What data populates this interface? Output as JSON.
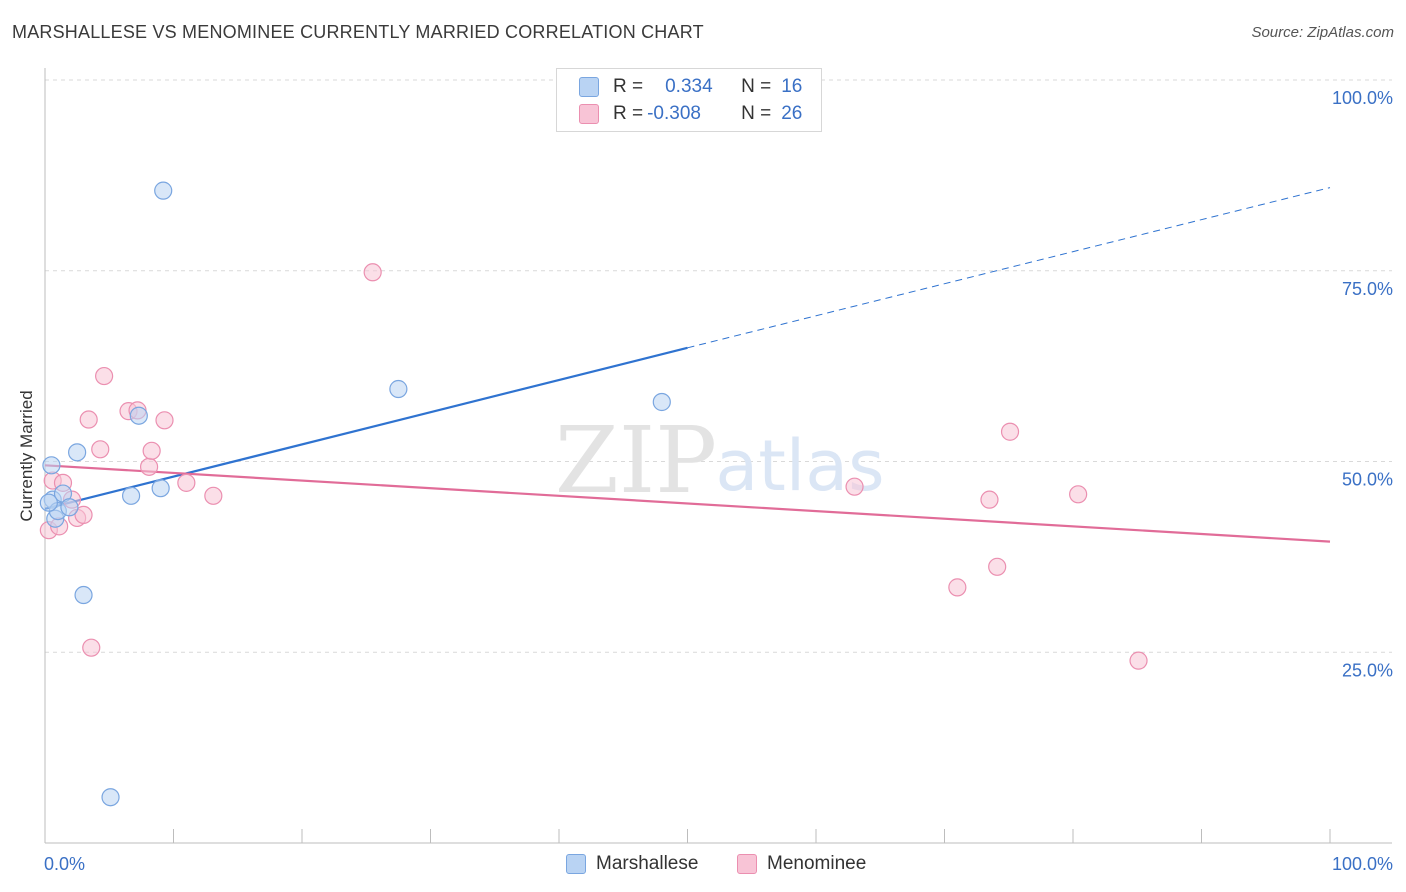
{
  "header": {
    "title": "MARSHALLESE VS MENOMINEE CURRENTLY MARRIED CORRELATION CHART",
    "source": "Source: ZipAtlas.com"
  },
  "watermark": {
    "zip": "ZIP",
    "atlas": "atlas"
  },
  "legend": {
    "r_label": "R =",
    "n_label": "N =",
    "series": [
      {
        "name": "Marshallese",
        "r": "0.334",
        "n": "16"
      },
      {
        "name": "Menominee",
        "r": "-0.308",
        "n": "26"
      }
    ]
  },
  "colors": {
    "marshallese_fill": "#b9d3f3",
    "marshallese_stroke": "#7aa6e0",
    "marshallese_line": "#2f73d0",
    "menominee_fill": "#f8c4d6",
    "menominee_stroke": "#eb8fb0",
    "menominee_line": "#e16c98",
    "axis_label": "#3a70c5",
    "grid": "#d9d9d9"
  },
  "chart_data": {
    "type": "scatter",
    "title": "MARSHALLESE VS MENOMINEE CURRENTLY MARRIED CORRELATION CHART",
    "xlabel": "",
    "ylabel": "Currently Married",
    "xlim": [
      0,
      100
    ],
    "ylim": [
      0,
      100
    ],
    "x_tick_labels": [
      "0.0%",
      "100.0%"
    ],
    "y_ticks": [
      25,
      50,
      75,
      100
    ],
    "y_tick_labels": [
      "25.0%",
      "50.0%",
      "75.0%",
      "100.0%"
    ],
    "grid": true,
    "series": [
      {
        "name": "Marshallese",
        "points": [
          [
            0.5,
            49.5
          ],
          [
            0.6,
            45.0
          ],
          [
            0.8,
            42.5
          ],
          [
            1.0,
            43.5
          ],
          [
            1.4,
            45.8
          ],
          [
            1.9,
            44.0
          ],
          [
            2.5,
            51.2
          ],
          [
            3.0,
            32.5
          ],
          [
            5.1,
            6.0
          ],
          [
            6.7,
            45.5
          ],
          [
            7.3,
            56.0
          ],
          [
            9.0,
            46.5
          ],
          [
            9.2,
            85.5
          ],
          [
            27.5,
            59.5
          ],
          [
            48.0,
            57.8
          ],
          [
            0.3,
            44.6
          ]
        ],
        "trend": {
          "x0": 0,
          "y0": 43.8,
          "x1": 50,
          "y1": 64.9,
          "dashed_to_x": 100,
          "dashed_to_y": 85.9
        }
      },
      {
        "name": "Menominee",
        "points": [
          [
            0.3,
            41.0
          ],
          [
            0.6,
            47.5
          ],
          [
            1.1,
            41.5
          ],
          [
            1.4,
            47.2
          ],
          [
            2.1,
            45.0
          ],
          [
            2.5,
            42.6
          ],
          [
            3.0,
            43.0
          ],
          [
            3.4,
            55.5
          ],
          [
            3.6,
            25.6
          ],
          [
            4.3,
            51.6
          ],
          [
            4.6,
            61.2
          ],
          [
            6.5,
            56.6
          ],
          [
            7.2,
            56.7
          ],
          [
            8.1,
            49.3
          ],
          [
            8.3,
            51.4
          ],
          [
            9.3,
            55.4
          ],
          [
            11.0,
            47.2
          ],
          [
            13.1,
            45.5
          ],
          [
            25.5,
            74.8
          ],
          [
            63.0,
            46.7
          ],
          [
            71.0,
            33.5
          ],
          [
            73.5,
            45.0
          ],
          [
            74.1,
            36.2
          ],
          [
            75.1,
            53.9
          ],
          [
            80.4,
            45.7
          ],
          [
            85.1,
            23.9
          ]
        ],
        "trend": {
          "x0": 0,
          "y0": 49.5,
          "x1": 100,
          "y1": 39.5
        }
      }
    ]
  }
}
